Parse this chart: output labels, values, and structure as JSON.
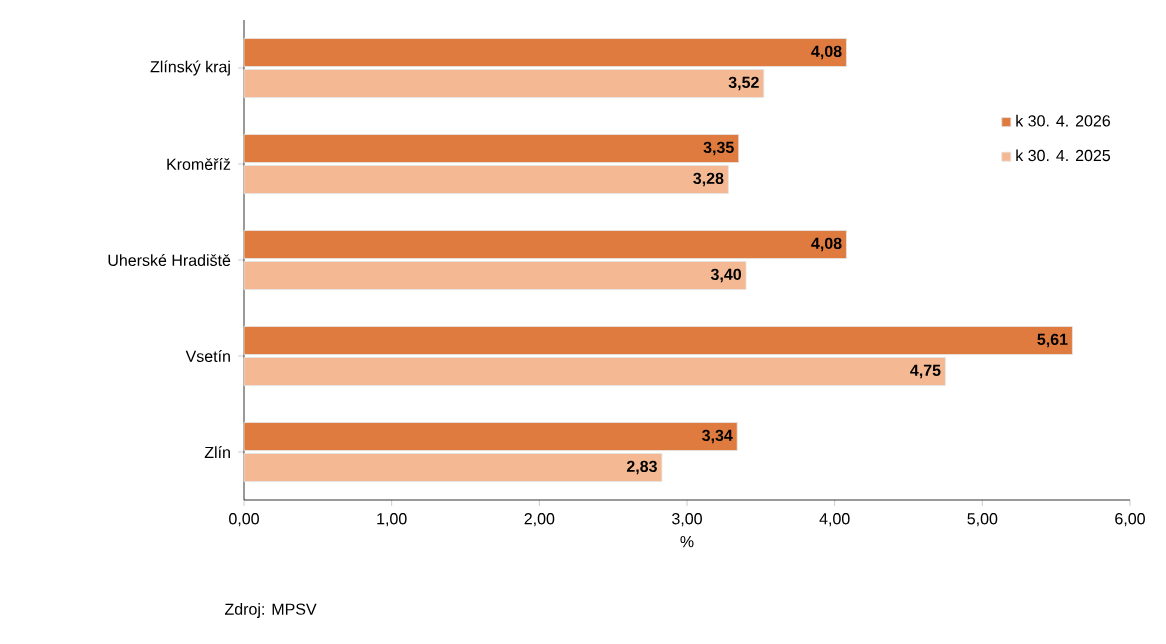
{
  "chart_data": {
    "type": "bar",
    "orientation": "horizontal",
    "categories": [
      "Zlínský kraj",
      "Kroměříž",
      "Uherské Hradiště",
      "Vsetín",
      "Zlín"
    ],
    "series": [
      {
        "name": "k 30. 4. 2026",
        "color": "#e07b3f",
        "values": [
          4.08,
          3.35,
          4.08,
          5.61,
          3.34
        ],
        "value_labels": [
          "4,08",
          "3,35",
          "4,08",
          "5,61",
          "3,34"
        ]
      },
      {
        "name": "k 30. 4. 2025",
        "color": "#f4b992",
        "values": [
          3.52,
          3.28,
          3.4,
          4.75,
          2.83
        ],
        "value_labels": [
          "3,52",
          "3,28",
          "3,40",
          "4,75",
          "2,83"
        ]
      }
    ],
    "xlim": [
      0,
      6
    ],
    "xticks": [
      {
        "value": 0,
        "label": "0,00"
      },
      {
        "value": 1,
        "label": "1,00"
      },
      {
        "value": 2,
        "label": "2,00"
      },
      {
        "value": 3,
        "label": "3,00"
      },
      {
        "value": 4,
        "label": "4,00"
      },
      {
        "value": 5,
        "label": "5,00"
      },
      {
        "value": 6,
        "label": "6,00"
      }
    ],
    "xlabel": "%",
    "legend": "right",
    "grid": false,
    "annotations": [
      "Zdroj: MPSV"
    ]
  }
}
